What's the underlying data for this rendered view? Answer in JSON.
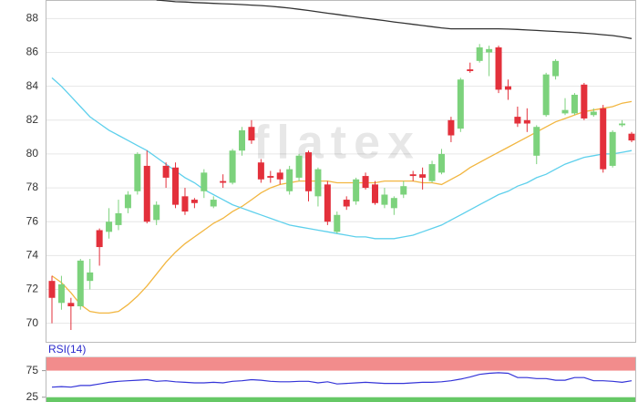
{
  "chart_data": [
    {
      "type": "candlestick",
      "watermark": "flatex",
      "ylim": [
        68.9,
        89.1
      ],
      "yticks": [
        70,
        72,
        74,
        76,
        78,
        80,
        82,
        84,
        86,
        88
      ],
      "grid": true,
      "up_color": "#7cd27c",
      "down_color": "#e3303b",
      "open": [
        72.5,
        71.2,
        71.2,
        71.0,
        72.5,
        75.5,
        75.4,
        75.8,
        76.8,
        77.8,
        79.3,
        76.1,
        79.3,
        79.2,
        77.5,
        77.3,
        77.8,
        76.9,
        78.4,
        78.3,
        80.2,
        81.6,
        79.5,
        78.7,
        78.9,
        77.8,
        78.6,
        80.1,
        77.5,
        78.2,
        75.4,
        77.3,
        77.2,
        78.7,
        78.2,
        77.0,
        76.8,
        77.6,
        78.8,
        78.8,
        78.4,
        78.9,
        82.0,
        81.5,
        85.0,
        85.5,
        86.0,
        86.3,
        84.0,
        82.2,
        82.0,
        79.9,
        82.3,
        84.6,
        82.4,
        82.4,
        84.1,
        82.3,
        82.7,
        79.3,
        81.7,
        81.2
      ],
      "high": [
        72.8,
        72.8,
        71.5,
        73.8,
        73.8,
        75.6,
        76.8,
        77.3,
        77.8,
        80.1,
        80.2,
        77.2,
        79.5,
        79.5,
        78.0,
        77.4,
        79.1,
        77.5,
        78.8,
        80.3,
        81.6,
        82.0,
        79.7,
        79.0,
        79.1,
        79.3,
        80.0,
        80.2,
        79.2,
        78.4,
        76.6,
        77.5,
        78.6,
        78.9,
        78.4,
        78.0,
        77.5,
        78.4,
        79.0,
        79.2,
        79.6,
        80.3,
        82.2,
        84.5,
        85.4,
        86.5,
        86.4,
        86.4,
        84.4,
        82.8,
        82.7,
        81.7,
        84.8,
        85.6,
        83.3,
        83.6,
        84.2,
        82.7,
        82.9,
        81.4,
        82.0,
        81.3
      ],
      "low": [
        70.0,
        70.8,
        69.6,
        70.8,
        72.0,
        73.4,
        75.0,
        75.5,
        76.5,
        77.6,
        75.9,
        75.8,
        78.0,
        76.8,
        76.4,
        76.8,
        77.4,
        76.8,
        78.0,
        78.2,
        79.9,
        80.6,
        78.3,
        78.3,
        78.2,
        77.6,
        78.4,
        77.2,
        76.9,
        75.8,
        75.3,
        76.7,
        77.0,
        77.9,
        77.0,
        76.8,
        76.4,
        77.4,
        78.4,
        77.9,
        78.3,
        78.8,
        80.7,
        81.3,
        84.8,
        85.4,
        84.6,
        83.6,
        83.2,
        81.6,
        81.3,
        79.4,
        82.2,
        84.4,
        82.3,
        82.3,
        82.0,
        82.2,
        78.9,
        79.2,
        81.6,
        80.7
      ],
      "close": [
        71.5,
        72.3,
        71.0,
        73.7,
        73.0,
        74.5,
        76.0,
        76.5,
        77.6,
        80.0,
        76.0,
        77.0,
        78.6,
        77.0,
        76.6,
        77.1,
        78.9,
        77.3,
        78.3,
        80.2,
        81.4,
        80.8,
        78.5,
        78.6,
        78.5,
        79.1,
        79.9,
        77.8,
        79.1,
        76.0,
        76.4,
        76.9,
        78.5,
        78.0,
        77.1,
        77.6,
        77.4,
        78.1,
        78.7,
        78.6,
        79.4,
        80.0,
        81.1,
        84.4,
        84.9,
        86.3,
        86.2,
        83.8,
        83.8,
        81.8,
        81.8,
        81.6,
        84.7,
        85.5,
        82.6,
        83.5,
        82.1,
        82.5,
        79.1,
        81.3,
        81.8,
        80.8
      ],
      "overlays": [
        {
          "color": "#333333",
          "values": [
            null,
            null,
            null,
            null,
            null,
            null,
            null,
            null,
            null,
            null,
            null,
            89.1,
            89.05,
            89.0,
            88.98,
            88.95,
            88.93,
            88.9,
            88.88,
            88.86,
            88.83,
            88.8,
            88.77,
            88.73,
            88.68,
            88.62,
            88.55,
            88.48,
            88.4,
            88.32,
            88.25,
            88.17,
            88.1,
            88.02,
            87.95,
            87.88,
            87.8,
            87.73,
            87.66,
            87.59,
            87.52,
            87.45,
            87.4,
            87.4,
            87.4,
            87.4,
            87.4,
            87.4,
            87.38,
            87.36,
            87.33,
            87.3,
            87.27,
            87.24,
            87.21,
            87.18,
            87.14,
            87.1,
            87.05,
            87.0,
            86.92,
            86.82
          ]
        },
        {
          "color": "#f2b640",
          "values": [
            72.8,
            72.4,
            71.8,
            71.1,
            70.7,
            70.6,
            70.6,
            70.7,
            71.1,
            71.6,
            72.2,
            72.9,
            73.6,
            74.2,
            74.7,
            75.1,
            75.5,
            75.9,
            76.2,
            76.6,
            76.9,
            77.3,
            77.7,
            78.0,
            78.2,
            78.3,
            78.4,
            78.4,
            78.4,
            78.4,
            78.3,
            78.3,
            78.3,
            78.3,
            78.3,
            78.4,
            78.4,
            78.4,
            78.4,
            78.3,
            78.3,
            78.2,
            78.5,
            78.8,
            79.2,
            79.5,
            79.8,
            80.1,
            80.4,
            80.7,
            81.0,
            81.3,
            81.6,
            81.9,
            82.1,
            82.3,
            82.5,
            82.6,
            82.7,
            82.8,
            83.0,
            83.1
          ]
        },
        {
          "color": "#5ed0ec",
          "values": [
            84.5,
            84.0,
            83.4,
            82.8,
            82.2,
            81.8,
            81.4,
            81.1,
            80.8,
            80.5,
            80.2,
            79.8,
            79.4,
            79.0,
            78.6,
            78.3,
            77.9,
            77.6,
            77.3,
            77.0,
            76.8,
            76.6,
            76.4,
            76.2,
            76.0,
            75.8,
            75.7,
            75.6,
            75.5,
            75.4,
            75.3,
            75.2,
            75.1,
            75.1,
            75.0,
            75.0,
            75.0,
            75.1,
            75.2,
            75.4,
            75.6,
            75.8,
            76.1,
            76.4,
            76.7,
            77.0,
            77.3,
            77.6,
            77.8,
            78.1,
            78.3,
            78.6,
            78.8,
            79.1,
            79.4,
            79.6,
            79.8,
            79.9,
            80.0,
            80.0,
            80.1,
            80.2
          ]
        }
      ]
    },
    {
      "type": "line",
      "title": "RSI(14)",
      "color": "#3434d8",
      "ylim": [
        16,
        100
      ],
      "yticks": [
        25,
        75
      ],
      "bands": [
        {
          "from": 75,
          "to": 100,
          "color": "#f28c8c"
        },
        {
          "from": 16,
          "to": 25,
          "color": "#66c866"
        }
      ],
      "values": [
        44,
        45,
        44,
        47,
        47,
        50,
        53,
        55,
        56,
        57,
        58,
        55,
        56,
        54,
        53,
        52,
        52,
        53,
        52,
        55,
        56,
        58,
        57,
        55,
        54,
        54,
        55,
        55,
        52,
        54,
        50,
        51,
        52,
        53,
        52,
        51,
        51,
        51,
        52,
        53,
        53,
        54,
        56,
        59,
        63,
        68,
        70,
        71,
        70,
        62,
        62,
        60,
        60,
        57,
        57,
        62,
        62,
        56,
        56,
        55,
        53,
        56
      ]
    }
  ]
}
